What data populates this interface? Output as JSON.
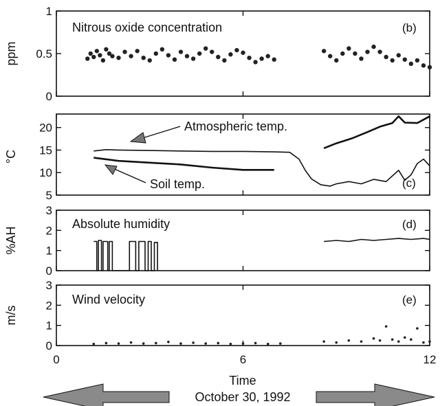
{
  "chart_data": [
    {
      "type": "scatter",
      "panel_label": "(b)",
      "title": "Nitrous oxide concentration",
      "ylabel": "ppm",
      "xlim": [
        0,
        12
      ],
      "ylim": [
        0,
        1
      ],
      "yticks": [
        0,
        0.5,
        1
      ],
      "ytick_labels": [
        "0",
        "0.5",
        "1"
      ],
      "series": [
        {
          "values": [
            [
              1.0,
              0.44
            ],
            [
              1.1,
              0.5
            ],
            [
              1.2,
              0.46
            ],
            [
              1.3,
              0.53
            ],
            [
              1.4,
              0.48
            ],
            [
              1.5,
              0.42
            ],
            [
              1.6,
              0.55
            ],
            [
              1.7,
              0.5
            ],
            [
              1.8,
              0.47
            ],
            [
              2.0,
              0.45
            ],
            [
              2.2,
              0.52
            ],
            [
              2.4,
              0.47
            ],
            [
              2.6,
              0.53
            ],
            [
              2.8,
              0.45
            ],
            [
              3.0,
              0.42
            ],
            [
              3.2,
              0.5
            ],
            [
              3.4,
              0.55
            ],
            [
              3.6,
              0.48
            ],
            [
              3.8,
              0.43
            ],
            [
              4.0,
              0.52
            ],
            [
              4.2,
              0.47
            ],
            [
              4.4,
              0.44
            ],
            [
              4.6,
              0.5
            ],
            [
              4.8,
              0.56
            ],
            [
              5.0,
              0.52
            ],
            [
              5.2,
              0.46
            ],
            [
              5.4,
              0.42
            ],
            [
              5.6,
              0.49
            ],
            [
              5.8,
              0.54
            ],
            [
              6.0,
              0.51
            ],
            [
              6.2,
              0.45
            ],
            [
              6.4,
              0.4
            ],
            [
              6.6,
              0.44
            ],
            [
              6.8,
              0.47
            ],
            [
              7.0,
              0.43
            ],
            [
              8.6,
              0.53
            ],
            [
              8.8,
              0.47
            ],
            [
              9.0,
              0.42
            ],
            [
              9.2,
              0.5
            ],
            [
              9.4,
              0.56
            ],
            [
              9.6,
              0.5
            ],
            [
              9.8,
              0.44
            ],
            [
              10.0,
              0.52
            ],
            [
              10.2,
              0.58
            ],
            [
              10.4,
              0.52
            ],
            [
              10.6,
              0.46
            ],
            [
              10.8,
              0.42
            ],
            [
              11.0,
              0.48
            ],
            [
              11.2,
              0.43
            ],
            [
              11.4,
              0.38
            ],
            [
              11.6,
              0.42
            ],
            [
              11.8,
              0.36
            ],
            [
              12.0,
              0.34
            ]
          ]
        }
      ]
    },
    {
      "type": "line",
      "panel_label": "(c)",
      "ylabel": "°C",
      "xlim": [
        0,
        12
      ],
      "ylim": [
        5,
        23
      ],
      "yticks": [
        5,
        10,
        15,
        20
      ],
      "ytick_labels": [
        "5",
        "10",
        "15",
        "20"
      ],
      "annotations": [
        "Atmospheric temp.",
        "Soil temp."
      ],
      "series": [
        {
          "name": "Atmospheric temp.",
          "values": [
            [
              1.2,
              14.8
            ],
            [
              1.6,
              15.1
            ],
            [
              2.0,
              15.0
            ],
            [
              3.0,
              14.9
            ],
            [
              4.0,
              14.8
            ],
            [
              5.0,
              14.7
            ],
            [
              6.0,
              14.7
            ],
            [
              7.0,
              14.6
            ],
            [
              7.5,
              14.5
            ],
            [
              7.8,
              13.0
            ],
            [
              8.0,
              10.5
            ],
            [
              8.2,
              8.6
            ],
            [
              8.5,
              7.3
            ],
            [
              8.8,
              7.0
            ],
            [
              9.0,
              7.5
            ],
            [
              9.4,
              8.0
            ],
            [
              9.8,
              7.5
            ],
            [
              10.2,
              8.5
            ],
            [
              10.6,
              8.0
            ],
            [
              11.0,
              10.5
            ],
            [
              11.2,
              8.3
            ],
            [
              11.4,
              9.5
            ],
            [
              11.6,
              12.0
            ],
            [
              11.8,
              13.0
            ],
            [
              12.0,
              11.5
            ]
          ]
        },
        {
          "name": "Soil temp.",
          "values": [
            [
              1.2,
              13.3
            ],
            [
              2.0,
              12.6
            ],
            [
              3.0,
              12.2
            ],
            [
              4.0,
              11.8
            ],
            [
              5.0,
              11.1
            ],
            [
              6.0,
              10.6
            ],
            [
              7.0,
              10.6
            ]
          ]
        },
        {
          "name": "",
          "values": [
            [
              8.6,
              15.4
            ],
            [
              9.0,
              16.5
            ],
            [
              9.5,
              17.6
            ],
            [
              10.0,
              19.0
            ],
            [
              10.4,
              20.2
            ],
            [
              10.8,
              21.0
            ],
            [
              11.0,
              22.5
            ],
            [
              11.2,
              21.1
            ],
            [
              11.6,
              21.0
            ],
            [
              12.0,
              22.5
            ]
          ]
        }
      ]
    },
    {
      "type": "line",
      "panel_label": "(d)",
      "title": "Absolute humidity",
      "ylabel": "%AH",
      "xlim": [
        0,
        12
      ],
      "ylim": [
        0,
        3
      ],
      "yticks": [
        0,
        1,
        2,
        3
      ],
      "ytick_labels": [
        "0",
        "1",
        "2",
        "3"
      ],
      "series": [
        {
          "values": [
            [
              1.2,
              1.45
            ],
            [
              1.3,
              1.45
            ],
            [
              1.3,
              0
            ],
            [
              1.35,
              0
            ],
            [
              1.35,
              1.5
            ],
            [
              1.45,
              1.5
            ],
            [
              1.45,
              0
            ],
            [
              1.5,
              0
            ],
            [
              1.5,
              1.45
            ],
            [
              1.65,
              1.45
            ],
            [
              1.65,
              0
            ],
            [
              1.7,
              0
            ],
            [
              1.7,
              1.45
            ],
            [
              1.8,
              1.45
            ],
            [
              1.8,
              0
            ],
            [
              2.35,
              0
            ],
            [
              2.35,
              1.45
            ],
            [
              2.55,
              1.45
            ],
            [
              2.55,
              0
            ],
            [
              2.65,
              0
            ],
            [
              2.65,
              1.45
            ],
            [
              2.85,
              1.45
            ],
            [
              2.85,
              0
            ],
            [
              2.95,
              0
            ],
            [
              2.95,
              1.45
            ],
            [
              3.05,
              1.45
            ],
            [
              3.05,
              0
            ],
            [
              3.15,
              0
            ],
            [
              3.15,
              1.4
            ],
            [
              3.25,
              1.4
            ],
            [
              3.25,
              0
            ]
          ]
        },
        {
          "values": [
            [
              8.6,
              1.45
            ],
            [
              9.0,
              1.5
            ],
            [
              9.4,
              1.45
            ],
            [
              9.8,
              1.55
            ],
            [
              10.2,
              1.5
            ],
            [
              10.6,
              1.55
            ],
            [
              11.0,
              1.6
            ],
            [
              11.4,
              1.55
            ],
            [
              11.8,
              1.6
            ],
            [
              12.0,
              1.55
            ]
          ]
        }
      ]
    },
    {
      "type": "scatter",
      "panel_label": "(e)",
      "title": "Wind velocity",
      "ylabel": "m/s",
      "xlim": [
        0,
        12
      ],
      "ylim": [
        0,
        3
      ],
      "yticks": [
        0,
        1,
        2,
        3
      ],
      "ytick_labels": [
        "0",
        "1",
        "2",
        "3"
      ],
      "xticks": [
        0,
        6,
        12
      ],
      "xtick_labels": [
        "0",
        "6",
        "12"
      ],
      "xlabel": "Time",
      "series": [
        {
          "values": [
            [
              1.2,
              0.08
            ],
            [
              1.6,
              0.12
            ],
            [
              2.0,
              0.1
            ],
            [
              2.4,
              0.15
            ],
            [
              2.8,
              0.1
            ],
            [
              3.2,
              0.12
            ],
            [
              3.6,
              0.18
            ],
            [
              4.0,
              0.1
            ],
            [
              4.4,
              0.14
            ],
            [
              4.8,
              0.1
            ],
            [
              5.2,
              0.12
            ],
            [
              5.6,
              0.08
            ],
            [
              6.0,
              0.1
            ],
            [
              6.4,
              0.12
            ],
            [
              6.8,
              0.08
            ],
            [
              7.2,
              0.1
            ],
            [
              8.6,
              0.2
            ],
            [
              9.0,
              0.15
            ],
            [
              9.4,
              0.25
            ],
            [
              9.8,
              0.2
            ],
            [
              10.2,
              0.35
            ],
            [
              10.4,
              0.25
            ],
            [
              10.6,
              0.95
            ],
            [
              10.8,
              0.3
            ],
            [
              11.0,
              0.2
            ],
            [
              11.2,
              0.4
            ],
            [
              11.4,
              0.3
            ],
            [
              11.6,
              0.85
            ],
            [
              11.8,
              0.15
            ],
            [
              12.0,
              0.2
            ]
          ]
        }
      ]
    }
  ],
  "date_caption": "October 30, 1992",
  "colors": {
    "ink": "#111111",
    "arrow_fill": "#8a8a8a",
    "arrow_stroke": "#111111",
    "background": "#ffffff"
  }
}
